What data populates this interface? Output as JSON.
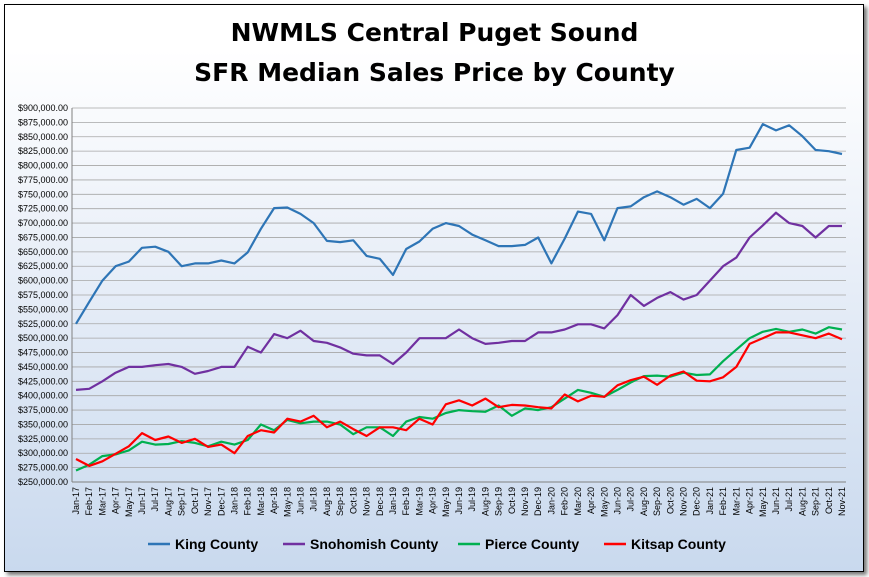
{
  "titles": [
    "NWMLS Central Puget Sound",
    "SFR Median Sales Price by County"
  ],
  "chart_data": {
    "type": "line",
    "title": "NWMLS Central Puget Sound SFR Median Sales Price by County",
    "ylim": [
      250000,
      900000
    ],
    "ystep": 25000,
    "grid": true,
    "legend": "bottom",
    "categories": [
      "Jan-17",
      "Feb-17",
      "Mar-17",
      "Apr-17",
      "May-17",
      "Jun-17",
      "Jul-17",
      "Aug-17",
      "Sep-17",
      "Oct-17",
      "Nov-17",
      "Dec-17",
      "Jan-18",
      "Feb-18",
      "Mar-18",
      "Apr-18",
      "May-18",
      "Jun-18",
      "Jul-18",
      "Aug-18",
      "Sep-18",
      "Oct-18",
      "Nov-18",
      "Dec-18",
      "Jan-19",
      "Feb-19",
      "Mar-19",
      "Apr-19",
      "May-19",
      "Jun-19",
      "Jul-19",
      "Aug-19",
      "Sep-19",
      "Oct-19",
      "Nov-19",
      "Dec-19",
      "Jan-20",
      "Feb-20",
      "Mar-20",
      "Apr-20",
      "May-20",
      "Jun-20",
      "Jul-20",
      "Aug-20",
      "Sep-20",
      "Oct-20",
      "Nov-20",
      "Dec-20",
      "Jan-21",
      "Feb-21",
      "Mar-21",
      "Apr-21",
      "May-21",
      "Jun-21",
      "Jul-21",
      "Aug-21",
      "Sep-21",
      "Oct-21",
      "Nov-21"
    ],
    "series": [
      {
        "name": "King County",
        "color": "#2e75b6",
        "values": [
          525000,
          563000,
          600000,
          625000,
          633000,
          657000,
          659000,
          650000,
          625000,
          630000,
          630000,
          635000,
          630000,
          649000,
          690000,
          726000,
          727000,
          716000,
          700000,
          669000,
          667000,
          670000,
          643000,
          638000,
          610000,
          655000,
          668000,
          690000,
          700000,
          695000,
          680000,
          670000,
          660000,
          660000,
          662000,
          675000,
          630000,
          673000,
          720000,
          716000,
          670000,
          726000,
          729000,
          745000,
          755000,
          745000,
          732000,
          742000,
          726000,
          751000,
          827000,
          831000,
          872000,
          861000,
          870000,
          851000,
          827000,
          825000,
          820000
        ]
      },
      {
        "name": "Snohomish County",
        "color": "#7030a0",
        "values": [
          410000,
          412000,
          425000,
          440000,
          450000,
          450000,
          453000,
          455000,
          450000,
          438000,
          443000,
          450000,
          450000,
          485000,
          475000,
          507000,
          500000,
          513000,
          495000,
          492000,
          484000,
          473000,
          470000,
          470000,
          455000,
          475000,
          500000,
          500000,
          500000,
          515000,
          500000,
          490000,
          492000,
          495000,
          495000,
          510000,
          510000,
          515000,
          524000,
          524000,
          517000,
          540000,
          575000,
          556000,
          570000,
          580000,
          567000,
          575000,
          600000,
          625000,
          640000,
          675000,
          696000,
          718000,
          700000,
          695000,
          675000,
          695000,
          695000
        ]
      },
      {
        "name": "Pierce County",
        "color": "#00b050",
        "values": [
          270000,
          280000,
          295000,
          298000,
          305000,
          320000,
          315000,
          316000,
          321000,
          318000,
          312000,
          320000,
          315000,
          323000,
          350000,
          340000,
          358000,
          352000,
          355000,
          355000,
          350000,
          333000,
          345000,
          345000,
          330000,
          355000,
          363000,
          360000,
          370000,
          375000,
          373000,
          372000,
          383000,
          365000,
          378000,
          375000,
          380000,
          395000,
          410000,
          405000,
          398000,
          410000,
          423000,
          434000,
          435000,
          433000,
          440000,
          436000,
          437000,
          460000,
          480000,
          500000,
          511000,
          516000,
          511000,
          515000,
          508000,
          519000,
          515000
        ]
      },
      {
        "name": "Kitsap County",
        "color": "#ff0000",
        "values": [
          290000,
          278000,
          286000,
          299000,
          312000,
          335000,
          323000,
          329000,
          318000,
          325000,
          311000,
          315000,
          300000,
          330000,
          340000,
          336000,
          360000,
          355000,
          365000,
          345000,
          355000,
          342000,
          330000,
          345000,
          345000,
          340000,
          360000,
          350000,
          385000,
          392000,
          383000,
          395000,
          380000,
          384000,
          383000,
          380000,
          378000,
          402000,
          390000,
          400000,
          398000,
          418000,
          427000,
          433000,
          419000,
          435000,
          442000,
          426000,
          425000,
          432000,
          450000,
          490000,
          500000,
          510000,
          510000,
          505000,
          500000,
          508000,
          498000
        ]
      }
    ]
  }
}
